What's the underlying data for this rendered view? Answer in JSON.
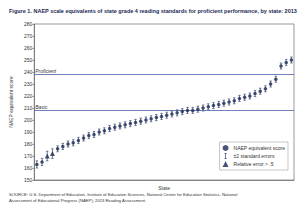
{
  "chart_data": {
    "type": "scatter",
    "title": "Figure 1. NAEP scale equivalents of state grade 4 reading standards for proficient performance, by state: 2013",
    "x_label": "State",
    "y_label": "NAEP equivalent score",
    "source": "SOURCE: U.S. Department of Education, Institute of Education Sciences, National Center for Education Statistics, National Assessment of Educational Progress (NAEP), 2013 Reading Assessment.",
    "categories": [
      null,
      null,
      null,
      null,
      null,
      null,
      null,
      null,
      null,
      null,
      null,
      null,
      null,
      null,
      null,
      null,
      null,
      null,
      null,
      null,
      null,
      null,
      null,
      null,
      null,
      null,
      null,
      null,
      null,
      null,
      null,
      null,
      null,
      null,
      null,
      null,
      null,
      null,
      null,
      null,
      null,
      null,
      null,
      null,
      null,
      null,
      null,
      null,
      null,
      null
    ],
    "series": [
      {
        "name": "NAEP equivalent score",
        "marker": "circle",
        "color": "#1b2a55",
        "values": [
          163,
          165,
          null,
          null,
          176,
          178,
          180,
          181,
          183,
          185,
          187,
          188,
          190,
          191,
          193,
          194,
          195,
          196,
          197,
          198,
          199,
          200,
          201,
          202,
          203,
          204,
          205,
          206,
          207,
          208,
          208,
          209,
          210,
          211,
          212,
          213,
          214,
          215,
          216,
          218,
          219,
          220,
          222,
          224,
          226,
          230,
          234,
          245,
          248,
          250
        ],
        "errors": [
          3,
          3,
          null,
          null,
          2.5,
          2.5,
          2.5,
          2.5,
          2.5,
          2.5,
          2.5,
          2.5,
          2.5,
          2.5,
          2.5,
          2.5,
          2.5,
          2.5,
          2.5,
          2.5,
          2.5,
          2.5,
          2.5,
          2.5,
          2.5,
          2.5,
          2.5,
          2.5,
          2.5,
          2.5,
          2.5,
          2.5,
          2.5,
          2.5,
          2.5,
          2.5,
          2.5,
          2.5,
          2.5,
          2.5,
          2.5,
          2.5,
          2.5,
          2.5,
          2.5,
          2.5,
          2.5,
          2.5,
          2.5,
          2.5
        ]
      },
      {
        "name": "Relative error > .5",
        "marker": "triangle",
        "color": "#1b2a55",
        "values": [
          null,
          null,
          170,
          172,
          null,
          null,
          null,
          null,
          null,
          null,
          null,
          null,
          null,
          null,
          null,
          null,
          null,
          null,
          null,
          null,
          null,
          null,
          null,
          null,
          null,
          null,
          null,
          null,
          null,
          null,
          null,
          null,
          null,
          null,
          null,
          null,
          null,
          null,
          null,
          null,
          null,
          null,
          null,
          null,
          null,
          null,
          null,
          null,
          null,
          null
        ],
        "errors": [
          null,
          null,
          4,
          4,
          null,
          null,
          null,
          null,
          null,
          null,
          null,
          null,
          null,
          null,
          null,
          null,
          null,
          null,
          null,
          null,
          null,
          null,
          null,
          null,
          null,
          null,
          null,
          null,
          null,
          null,
          null,
          null,
          null,
          null,
          null,
          null,
          null,
          null,
          null,
          null,
          null,
          null,
          null,
          null,
          null,
          null,
          null,
          null,
          null,
          null
        ]
      }
    ],
    "error_bar_label": "±2 standard errors",
    "reference_lines": [
      {
        "label": "Proficient",
        "value": 238,
        "color": "#4a5fa8"
      },
      {
        "label": "Basic",
        "value": 208,
        "color": "#4a5fa8"
      }
    ],
    "ylim": [
      150,
      280
    ],
    "yticks": [
      150,
      160,
      170,
      180,
      190,
      200,
      210,
      220,
      230,
      240,
      250,
      260,
      270,
      280
    ],
    "grid": false,
    "tick_labels": "y",
    "legend": "lower right"
  }
}
